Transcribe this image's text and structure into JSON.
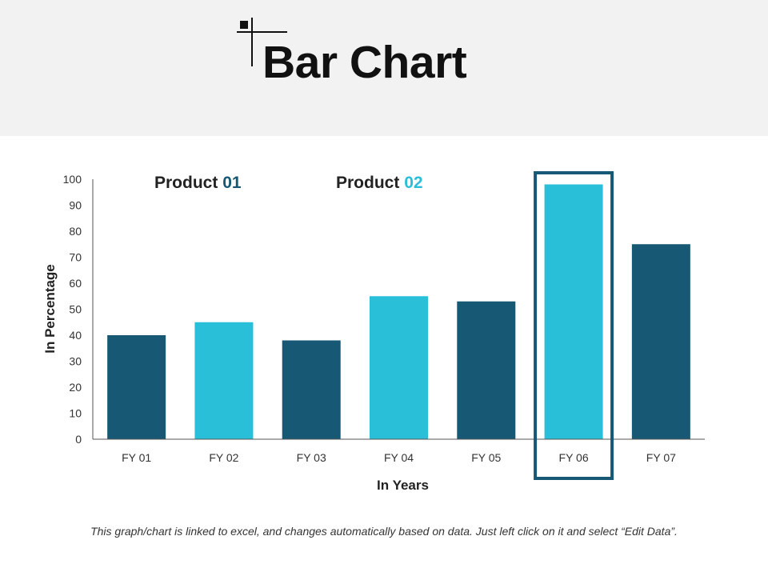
{
  "header": {
    "title": "Bar Chart"
  },
  "legend": [
    {
      "word": "Product",
      "number": "01",
      "color": "#175874"
    },
    {
      "word": "Product",
      "number": "02",
      "color": "#29bfd8"
    }
  ],
  "colors": {
    "dark_bar": "#175874",
    "light_bar": "#29bfd8",
    "highlight_frame": "#175874"
  },
  "chart_data": {
    "type": "bar",
    "categories": [
      "FY 01",
      "FY 02",
      "FY 03",
      "FY 04",
      "FY 05",
      "FY 06",
      "FY 07"
    ],
    "values": [
      40,
      45,
      38,
      55,
      53,
      98,
      75
    ],
    "bar_series": [
      "Product 01",
      "Product 02",
      "Product 01",
      "Product 02",
      "Product 01",
      "Product 02",
      "Product 01"
    ],
    "highlighted_category": "FY 06",
    "xlabel": "In Years",
    "ylabel": "In Percentage",
    "ylim": [
      0,
      100
    ],
    "yticks": [
      0,
      10,
      20,
      30,
      40,
      50,
      60,
      70,
      80,
      90,
      100
    ],
    "grid": false,
    "legend_position": "top-left"
  },
  "footnote": "This graph/chart is linked to excel, and changes automatically based on data. Just left click on it and select “Edit Data”."
}
